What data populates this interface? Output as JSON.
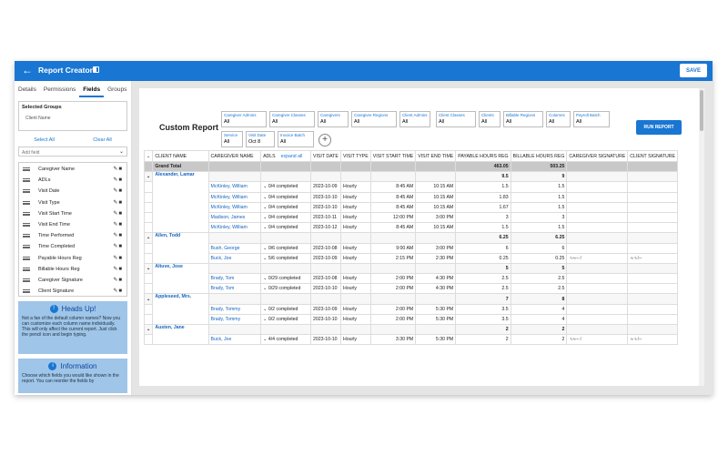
{
  "app": {
    "title": "Report Creator",
    "save_label": "SAVE"
  },
  "sidebar": {
    "tabs": [
      "Details",
      "Permissions",
      "Fields",
      "Groups"
    ],
    "selected_groups_title": "Selected Groups",
    "selected_groups_value": "Client Name",
    "select_all": "Select All",
    "clear_all": "Clear All",
    "add_field_placeholder": "Add field",
    "fields": [
      "Caregiver Name",
      "ADLs",
      "Visit Date",
      "Visit Type",
      "Visit Start Time",
      "Visit End Time",
      "Time Performed",
      "Time Completed",
      "Payable Hours Reg",
      "Billable Hours Reg",
      "Caregiver Signature",
      "Client Signature"
    ],
    "heads_up_title": "Heads Up!",
    "heads_up_text": "Not a fan of the default column names? Now you can customize each column name individually. This will only affect the current report. Just click the pencil icon and begin typing.",
    "info_title": "Information",
    "info_text": "Choose which fields you would like shown in the report. You can reorder the fields by"
  },
  "main": {
    "report_title": "Custom Report",
    "run_label": "RUN REPORT",
    "filters": [
      {
        "label": "Caregiver Admins",
        "value": "All"
      },
      {
        "label": "Caregiver Classes",
        "value": "All"
      },
      {
        "label": "Caregivers",
        "value": "All"
      },
      {
        "label": "Caregiver Regions",
        "value": "All"
      },
      {
        "label": "Client Admins",
        "value": "All"
      },
      {
        "label": "Client Classes",
        "value": "All"
      },
      {
        "label": "Clients",
        "value": "All"
      },
      {
        "label": "Billable Regions",
        "value": "All"
      },
      {
        "label": "Columns",
        "value": "All"
      },
      {
        "label": "Payroll Batch",
        "value": "All"
      },
      {
        "label": "Service",
        "value": "All"
      },
      {
        "label": "Visit Date",
        "value": "Oct 8"
      },
      {
        "label": "Invoice Batch",
        "value": "All"
      }
    ],
    "columns": [
      "CLIENT NAME",
      "CAREGIVER NAME",
      "ADLS",
      "VISIT DATE",
      "VISIT TYPE",
      "VISIT START TIME",
      "VISIT END TIME",
      "PAYABLE HOURS REG",
      "BILLABLE HOURS REG",
      "CAREGIVER SIGNATURE",
      "CLIENT SIGNATURE"
    ],
    "expand_all": "expand all",
    "grand_total": {
      "label": "Grand Total",
      "payable": "463.05",
      "billable": "503.25"
    },
    "groups": [
      {
        "client": "Alexander, Lamar",
        "payable": "9.5",
        "billable": "9",
        "rows": [
          [
            "McKinley, William",
            "0/4 completed",
            "2023-10-09",
            "Hourly",
            "8:45 AM",
            "10:15 AM",
            "1.5",
            "1.5",
            "",
            ""
          ],
          [
            "McKinley, William",
            "0/4 completed",
            "2023-10-10",
            "Hourly",
            "8:45 AM",
            "10:15 AM",
            "1.83",
            "1.5",
            "",
            ""
          ],
          [
            "McKinley, William",
            "0/4 completed",
            "2023-10-10",
            "Hourly",
            "8:45 AM",
            "10:15 AM",
            "1.67",
            "1.5",
            "",
            ""
          ],
          [
            "Madison, James",
            "0/4 completed",
            "2023-10-11",
            "Hourly",
            "12:00 PM",
            "3:00 PM",
            "3",
            "3",
            "",
            ""
          ],
          [
            "McKinley, William",
            "0/4 completed",
            "2023-10-12",
            "Hourly",
            "8:45 AM",
            "10:15 AM",
            "1.5",
            "1.5",
            "",
            ""
          ]
        ]
      },
      {
        "client": "Allen, Todd",
        "payable": "6.25",
        "billable": "6.25",
        "rows": [
          [
            "Bush, George",
            "0/6 completed",
            "2023-10-08",
            "Hourly",
            "9:00 AM",
            "3:00 PM",
            "6",
            "6",
            "",
            ""
          ],
          [
            "Buck, Joe",
            "5/6 completed",
            "2023-10-09",
            "Hourly",
            "2:15 PM",
            "2:30 PM",
            "0.25",
            "0.25",
            "signature",
            "signature"
          ]
        ]
      },
      {
        "client": "Altuve, Jose",
        "payable": "5",
        "billable": "5",
        "rows": [
          [
            "Brady, Tom",
            "0/29 completed",
            "2023-10-08",
            "Hourly",
            "2:00 PM",
            "4:30 PM",
            "2.5",
            "2.5",
            "",
            ""
          ],
          [
            "Brady, Tom",
            "0/29 completed",
            "2023-10-10",
            "Hourly",
            "2:00 PM",
            "4:30 PM",
            "2.5",
            "2.5",
            "",
            ""
          ]
        ]
      },
      {
        "client": "Appleseed, Mrs.",
        "payable": "7",
        "billable": "8",
        "rows": [
          [
            "Brady, Tommy",
            "0/2 completed",
            "2023-10-09",
            "Hourly",
            "2:00 PM",
            "5:30 PM",
            "3.5",
            "4",
            "",
            ""
          ],
          [
            "Brady, Tommy",
            "0/2 completed",
            "2023-10-10",
            "Hourly",
            "2:00 PM",
            "5:30 PM",
            "3.5",
            "4",
            "",
            ""
          ]
        ]
      },
      {
        "client": "Austen, Jane",
        "payable": "2",
        "billable": "2",
        "rows": [
          [
            "Buck, Joe",
            "4/4 completed",
            "2023-10-10",
            "Hourly",
            "3:30 PM",
            "5:30 PM",
            "2",
            "2",
            "signature",
            "signature"
          ]
        ]
      }
    ]
  }
}
